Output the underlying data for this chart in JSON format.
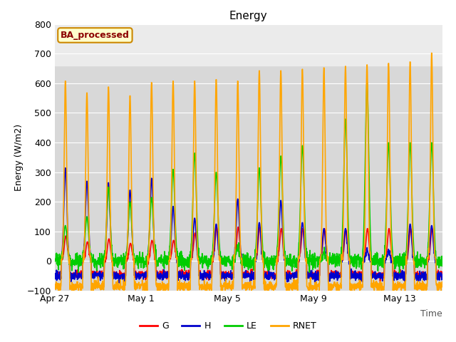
{
  "title": "Energy",
  "xlabel": "Time",
  "ylabel": "Energy (W/m2)",
  "ylim": [
    -100,
    800
  ],
  "yticks": [
    -100,
    0,
    100,
    200,
    300,
    400,
    500,
    600,
    700,
    800
  ],
  "colors": {
    "G": "#ff0000",
    "H": "#0000cc",
    "LE": "#00cc00",
    "RNET": "#ffa500"
  },
  "plot_bg_color": "#d8d8d8",
  "shade_above": 660,
  "shade_color": "#ebebeb",
  "n_days": 18,
  "legend_label": "BA_processed",
  "x_ticks_labels": [
    "Apr 27",
    "May 1",
    "May 5",
    "May 9",
    "May 13"
  ],
  "x_ticks_days": [
    0,
    4,
    8,
    12,
    16
  ],
  "day_peaks_rnet": [
    610,
    570,
    590,
    560,
    605,
    610,
    610,
    615,
    610,
    645,
    645,
    650,
    655,
    660,
    665,
    670,
    675,
    705
  ],
  "day_peaks_h": [
    315,
    270,
    265,
    240,
    280,
    185,
    145,
    125,
    210,
    130,
    205,
    130,
    110,
    110,
    35,
    30,
    125,
    120
  ],
  "day_peaks_le": [
    120,
    150,
    250,
    200,
    215,
    310,
    365,
    300,
    50,
    315,
    355,
    390,
    30,
    480,
    605,
    400,
    400,
    400
  ],
  "day_peaks_g": [
    85,
    65,
    75,
    60,
    70,
    70,
    95,
    115,
    115,
    115,
    110,
    110,
    110,
    105,
    110,
    110,
    110,
    110
  ],
  "linewidth": 1.2
}
